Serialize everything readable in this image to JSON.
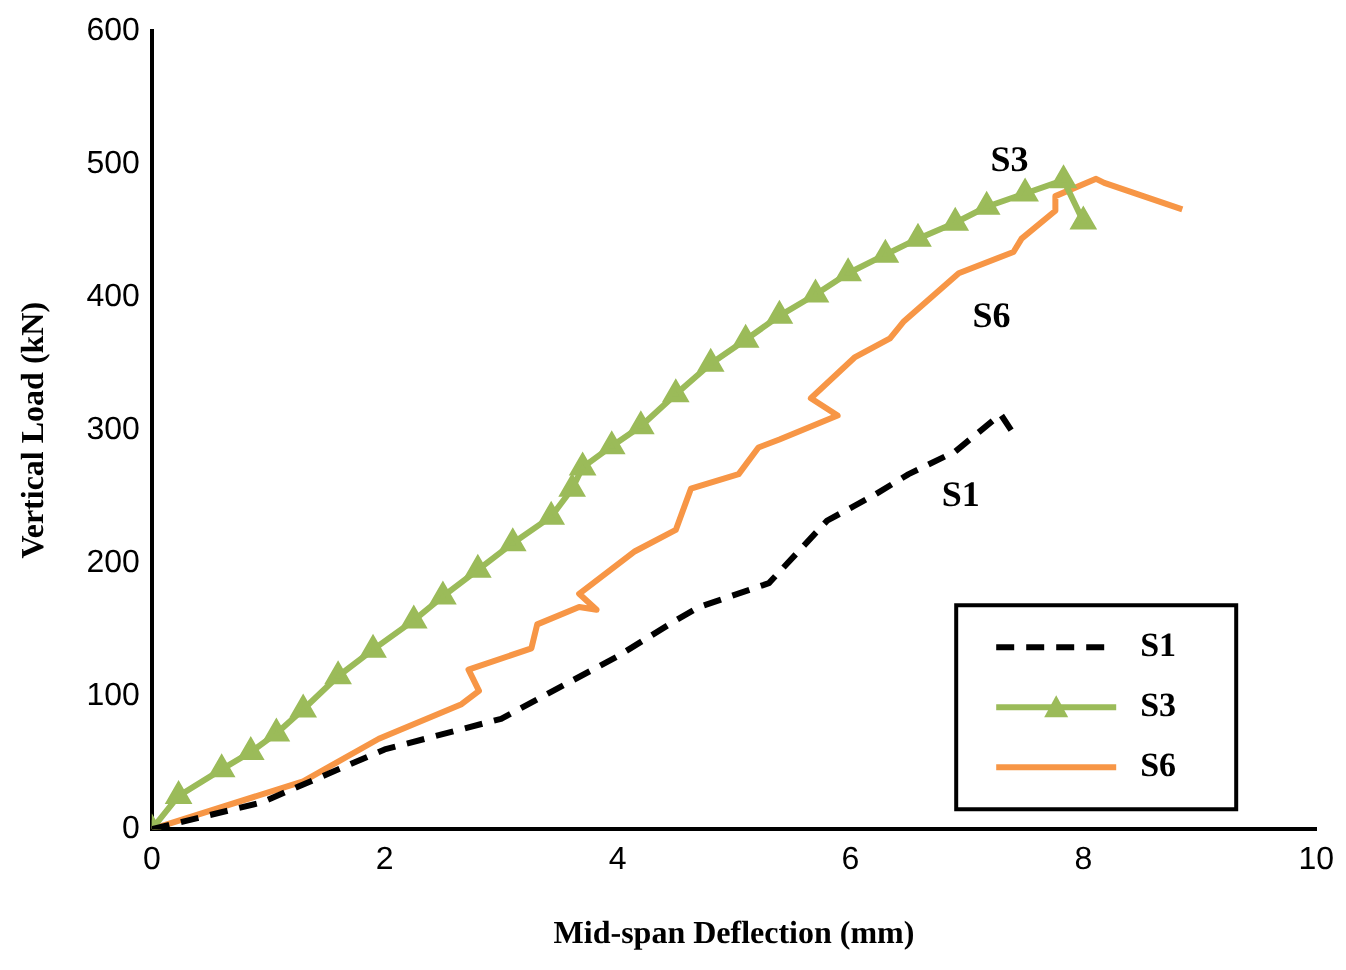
{
  "chart_data": {
    "type": "line",
    "xlabel": "Mid-span Deflection (mm)",
    "ylabel": "Vertical Load (kN)",
    "xlim": [
      0,
      10
    ],
    "xticks": [
      0,
      2,
      4,
      6,
      8,
      10
    ],
    "ylim": [
      0,
      600
    ],
    "yticks": [
      0,
      100,
      200,
      300,
      400,
      500,
      600
    ],
    "grid": false,
    "legend": "bottom right",
    "series": [
      {
        "name": "S1",
        "color": "#000000",
        "line_style": "dashed",
        "marker": "none",
        "x": [
          0,
          0.94,
          2,
          3,
          4,
          4.5,
          4.7,
          5.3,
          5.8,
          6.2,
          6.5,
          6.9,
          7.29,
          7.38
        ],
        "values": [
          0,
          20,
          60,
          83,
          130,
          157,
          167,
          185,
          232,
          251,
          267,
          284,
          312,
          300
        ]
      },
      {
        "name": "S3",
        "color": "#9bbb59",
        "line_style": "solid",
        "marker": "triangle",
        "x": [
          0,
          0.23,
          0.6,
          0.85,
          1.07,
          1.3,
          1.6,
          1.9,
          2.25,
          2.5,
          2.8,
          3.1,
          3.43,
          3.61,
          3.7,
          3.95,
          4.2,
          4.5,
          4.8,
          5.1,
          5.39,
          5.7,
          5.98,
          6.3,
          6.58,
          6.9,
          7.17,
          7.5,
          7.83,
          8.0
        ],
        "values": [
          0,
          25,
          45,
          58,
          72,
          90,
          115,
          135,
          157,
          175,
          195,
          215,
          235,
          256,
          272,
          288,
          303,
          327,
          350,
          368,
          386,
          402,
          418,
          432,
          444,
          456,
          468,
          478,
          488,
          457
        ]
      },
      {
        "name": "S6",
        "color": "#f79646",
        "line_style": "solid",
        "marker": "none",
        "x": [
          0,
          1.3,
          1.95,
          2.66,
          2.81,
          2.72,
          3.26,
          3.31,
          3.67,
          3.82,
          3.67,
          4.15,
          4.5,
          4.63,
          5.04,
          5.21,
          5.39,
          5.89,
          5.66,
          6.04,
          6.34,
          6.46,
          6.93,
          7.4,
          7.47,
          7.76,
          7.76,
          8.11,
          8.18,
          8.85
        ],
        "values": [
          0,
          36,
          68,
          94,
          104,
          120,
          136,
          154,
          167,
          165,
          177,
          209,
          225,
          256,
          267,
          287,
          293,
          311,
          324,
          355,
          369,
          382,
          418,
          434,
          444,
          465,
          476,
          489,
          486,
          466
        ]
      }
    ],
    "annotations": [
      "S1",
      "S3",
      "S6"
    ]
  }
}
